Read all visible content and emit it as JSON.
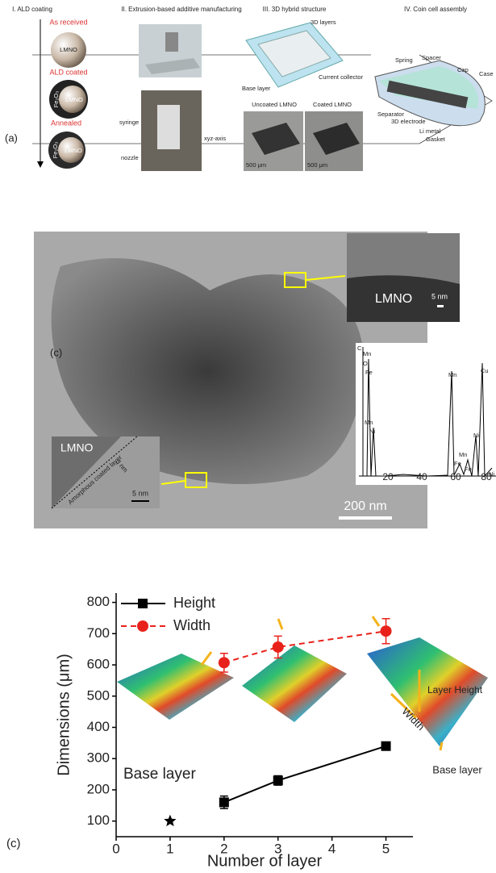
{
  "panel_a": {
    "label": "(a)",
    "headings": [
      "I. ALD coating",
      "II. Extrusion-based additive manufacturing",
      "III. 3D hybrid structure",
      "IV. Coin cell assembly"
    ],
    "stages": [
      "As received",
      "ALD coated",
      "Annealed"
    ],
    "particle": "LMNO",
    "coating": "Fe₂O₃",
    "printer_labels": [
      "syringe",
      "nozzle",
      "xyz-axis"
    ],
    "structure_labels": [
      "3D layers",
      "Base layer",
      "Current collector"
    ],
    "photo_titles": [
      "Uncoated LMNO",
      "Coated LMNO"
    ],
    "scale": "500 μm",
    "cell_labels": [
      "Spring",
      "Spacer",
      "Cap",
      "Case",
      "Separator",
      "3D electrode",
      "Li metal",
      "Gasket"
    ]
  },
  "panel_b": {
    "label": "(c)",
    "inset_top": {
      "text": "LMNO",
      "scale": "5 nm"
    },
    "inset_bottom": {
      "text": "LMNO",
      "thickness": "3 nm",
      "layer": "Amorphous coated layer",
      "scale": "5 nm"
    },
    "scale": "200 nm",
    "eds": {
      "peaks": [
        "C",
        "O",
        "Mn",
        "Fe",
        "Mn",
        "Ni",
        "Mn",
        "Cu",
        "Mn",
        "Fe",
        "Ni",
        "Fe",
        "Ni"
      ],
      "ticks": [
        20,
        40,
        60,
        80
      ]
    }
  },
  "chart_data": {
    "type": "line",
    "label": "(c)",
    "x_label": "Number of layer",
    "y_label": "Dimensions (μm)",
    "series": [
      {
        "name": "Height",
        "color": "#000000",
        "marker": "square",
        "dash": false,
        "x": [
          2,
          3,
          5
        ],
        "values": [
          160,
          230,
          340
        ],
        "errors": [
          20,
          15,
          10
        ]
      },
      {
        "name": "Width",
        "color": "#e8221b",
        "marker": "circle",
        "dash": true,
        "x": [
          2,
          3,
          5
        ],
        "values": [
          607,
          657,
          708
        ],
        "errors": [
          30,
          35,
          40
        ]
      }
    ],
    "markers": [
      {
        "label": "Base layer",
        "x": 1,
        "y": 100
      }
    ],
    "annotations": [
      "Layer Height",
      "Width",
      "Base layer"
    ],
    "xlim": [
      0,
      5.5
    ],
    "xticks": [
      0,
      1,
      2,
      3,
      4,
      5
    ],
    "ylim": [
      50,
      830
    ],
    "yticks": [
      100,
      200,
      300,
      400,
      500,
      600,
      700,
      800
    ]
  }
}
